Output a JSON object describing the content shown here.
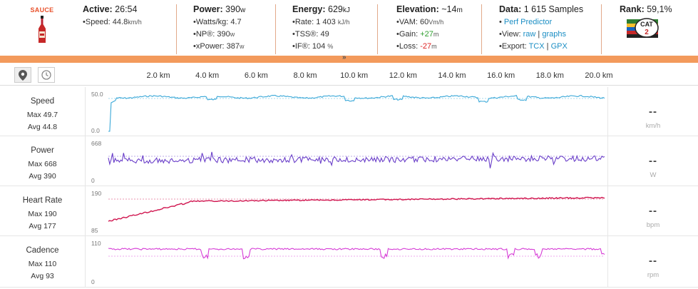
{
  "brand": "SAUCE",
  "summary": {
    "active": {
      "label": "Active:",
      "value": "26:54",
      "speed_label": "Speed:",
      "speed_value": "44.8",
      "speed_unit": "km/h"
    },
    "power": {
      "label": "Power:",
      "value": "390",
      "unit": "w",
      "rows": [
        {
          "label": "Watts/kg:",
          "value": "4.7",
          "unit": ""
        },
        {
          "label": "NP®:",
          "value": "390",
          "unit": "w"
        },
        {
          "label": "xPower:",
          "value": "387",
          "unit": "w"
        }
      ]
    },
    "energy": {
      "label": "Energy:",
      "value": "629",
      "unit": "kJ",
      "rows": [
        {
          "label": "Rate:",
          "value": "1 403",
          "unit": "kJ/h"
        },
        {
          "label": "TSS®:",
          "value": "49",
          "unit": ""
        },
        {
          "label": "IF®:",
          "value": "104",
          "unit": "%"
        }
      ]
    },
    "elevation": {
      "label": "Elevation:",
      "value": "~14",
      "unit": "m",
      "vam_label": "VAM:",
      "vam_value": "60",
      "vam_unit": "Vm/h",
      "gain_label": "Gain:",
      "gain_value": "+27",
      "gain_unit": "m",
      "loss_label": "Loss:",
      "loss_value": "-27",
      "loss_unit": "m"
    },
    "data": {
      "label": "Data:",
      "value": "1 615 Samples",
      "perf_link": "Perf Predictor",
      "view_label": "View:",
      "view_raw": "raw",
      "view_sep": "|",
      "view_graphs": "graphs",
      "export_label": "Export:",
      "export_tcx": "TCX",
      "export_sep": "|",
      "export_gpx": "GPX"
    },
    "rank": {
      "label": "Rank:",
      "value": "59,1%",
      "badge_text": "CAT",
      "badge_num": "2"
    }
  },
  "toolbar": {
    "map_icon": "map-pin-icon",
    "time_icon": "clock-icon"
  },
  "distance_axis": [
    "2.0 km",
    "4.0 km",
    "6.0 km",
    "8.0 km",
    "10.0 km",
    "12.0 km",
    "14.0 km",
    "16.0 km",
    "18.0 km",
    "20.0 km"
  ],
  "bullet": "•",
  "panels": [
    {
      "name": "Speed",
      "max_label": "Max 49.7",
      "avg_label": "Avg 44.8",
      "ytop": "50.0",
      "ybottom": "0.0",
      "readout": "--",
      "unit": "km/h",
      "color": "#3aa8d8"
    },
    {
      "name": "Power",
      "max_label": "Max 668",
      "avg_label": "Avg 390",
      "ytop": "668",
      "ybottom": "0",
      "readout": "--",
      "unit": "W",
      "color": "#6a3fc9"
    },
    {
      "name": "Heart Rate",
      "max_label": "Max 190",
      "avg_label": "Avg 177",
      "ytop": "190",
      "ybottom": "85",
      "readout": "--",
      "unit": "bpm",
      "color": "#d0154f"
    },
    {
      "name": "Cadence",
      "max_label": "Max 110",
      "avg_label": "Avg 93",
      "ytop": "110",
      "ybottom": "0",
      "readout": "--",
      "unit": "rpm",
      "color": "#d63cd6"
    }
  ]
}
